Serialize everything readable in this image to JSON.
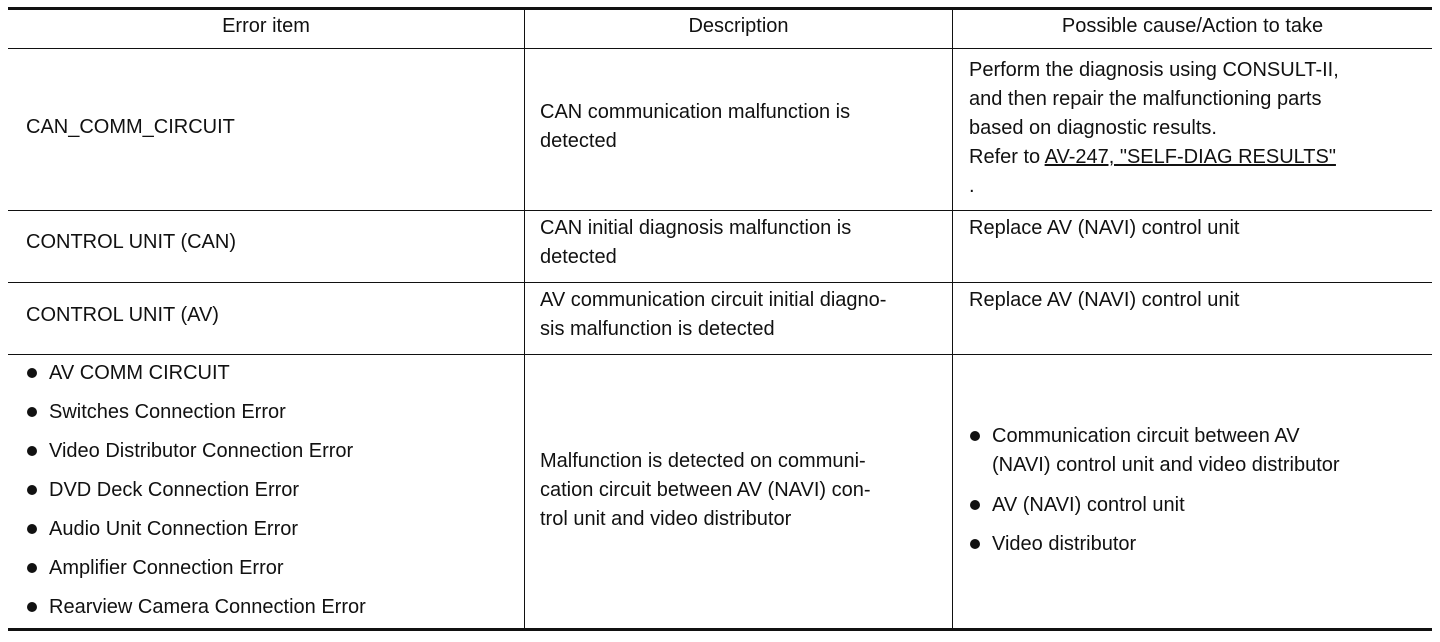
{
  "table": {
    "header": [
      "Error item",
      "Description",
      "Possible cause/Action to take"
    ],
    "rows": [
      {
        "error_item": [
          "CAN_COMM_CIRCUIT"
        ],
        "description": [
          "CAN communication malfunction is",
          "detected"
        ],
        "action": {
          "lines": [
            "Perform the diagnosis using CONSULT-II,",
            "and then repair the malfunctioning parts",
            "based on diagnostic results."
          ],
          "refer": "Refer to",
          "link": "AV-247, \"SELF-DIAG RESULTS\"",
          "end": "."
        }
      },
      {
        "error_item": [
          "CONTROL UNIT (CAN)"
        ],
        "description": [
          "CAN initial diagnosis malfunction is",
          "detected"
        ],
        "action": {
          "lines": [
            "Replace AV (NAVI) control unit"
          ]
        }
      },
      {
        "error_item": [
          "CONTROL UNIT (AV)"
        ],
        "description": [
          "AV communication circuit initial diagno-",
          "sis malfunction is detected"
        ],
        "action": {
          "lines": [
            "Replace AV (NAVI) control unit"
          ]
        }
      },
      {
        "error_item": [
          "AV COMM CIRCUIT",
          "Switches Connection Error",
          "Video Distributor Connection Error",
          "DVD Deck Connection Error",
          "Audio Unit Connection Error",
          "Amplifier Connection Error",
          "Rearview Camera Connection Error"
        ],
        "description": [
          "Malfunction is detected on communi-",
          "cation circuit between AV (NAVI) con-",
          "trol unit and video distributor"
        ],
        "action": {
          "bullets": [
            [
              "Communication circuit between AV",
              "(NAVI) control unit and video distributor"
            ],
            [
              "AV (NAVI) control unit"
            ],
            [
              "Video distributor"
            ]
          ]
        }
      }
    ]
  }
}
